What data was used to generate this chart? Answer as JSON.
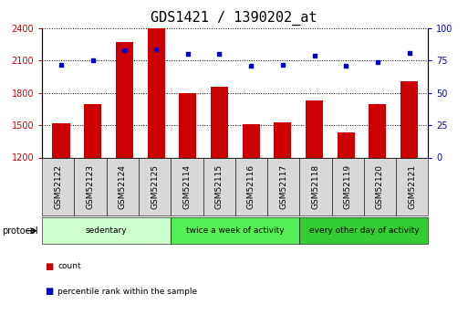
{
  "title": "GDS1421 / 1390202_at",
  "samples": [
    "GSM52122",
    "GSM52123",
    "GSM52124",
    "GSM52125",
    "GSM52114",
    "GSM52115",
    "GSM52116",
    "GSM52117",
    "GSM52118",
    "GSM52119",
    "GSM52120",
    "GSM52121"
  ],
  "counts": [
    1520,
    1700,
    2270,
    2400,
    1800,
    1860,
    1510,
    1530,
    1730,
    1430,
    1700,
    1910
  ],
  "percentiles": [
    72,
    75,
    83,
    84,
    80,
    80,
    71,
    72,
    79,
    71,
    74,
    81
  ],
  "ylim_left": [
    1200,
    2400
  ],
  "ylim_right": [
    0,
    100
  ],
  "yticks_left": [
    1200,
    1500,
    1800,
    2100,
    2400
  ],
  "yticks_right": [
    0,
    25,
    50,
    75,
    100
  ],
  "bar_color": "#cc0000",
  "dot_color": "#0000cc",
  "groups": [
    {
      "label": "sedentary",
      "start": 0,
      "end": 4,
      "color": "#ccffcc"
    },
    {
      "label": "twice a week of activity",
      "start": 4,
      "end": 8,
      "color": "#55ee55"
    },
    {
      "label": "every other day of activity",
      "start": 8,
      "end": 12,
      "color": "#33cc33"
    }
  ],
  "protocol_label": "protocol",
  "legend_items": [
    {
      "color": "#cc0000",
      "label": "count"
    },
    {
      "color": "#0000cc",
      "label": "percentile rank within the sample"
    }
  ],
  "title_fontsize": 11,
  "tick_fontsize": 7,
  "sample_fontsize": 6.5
}
